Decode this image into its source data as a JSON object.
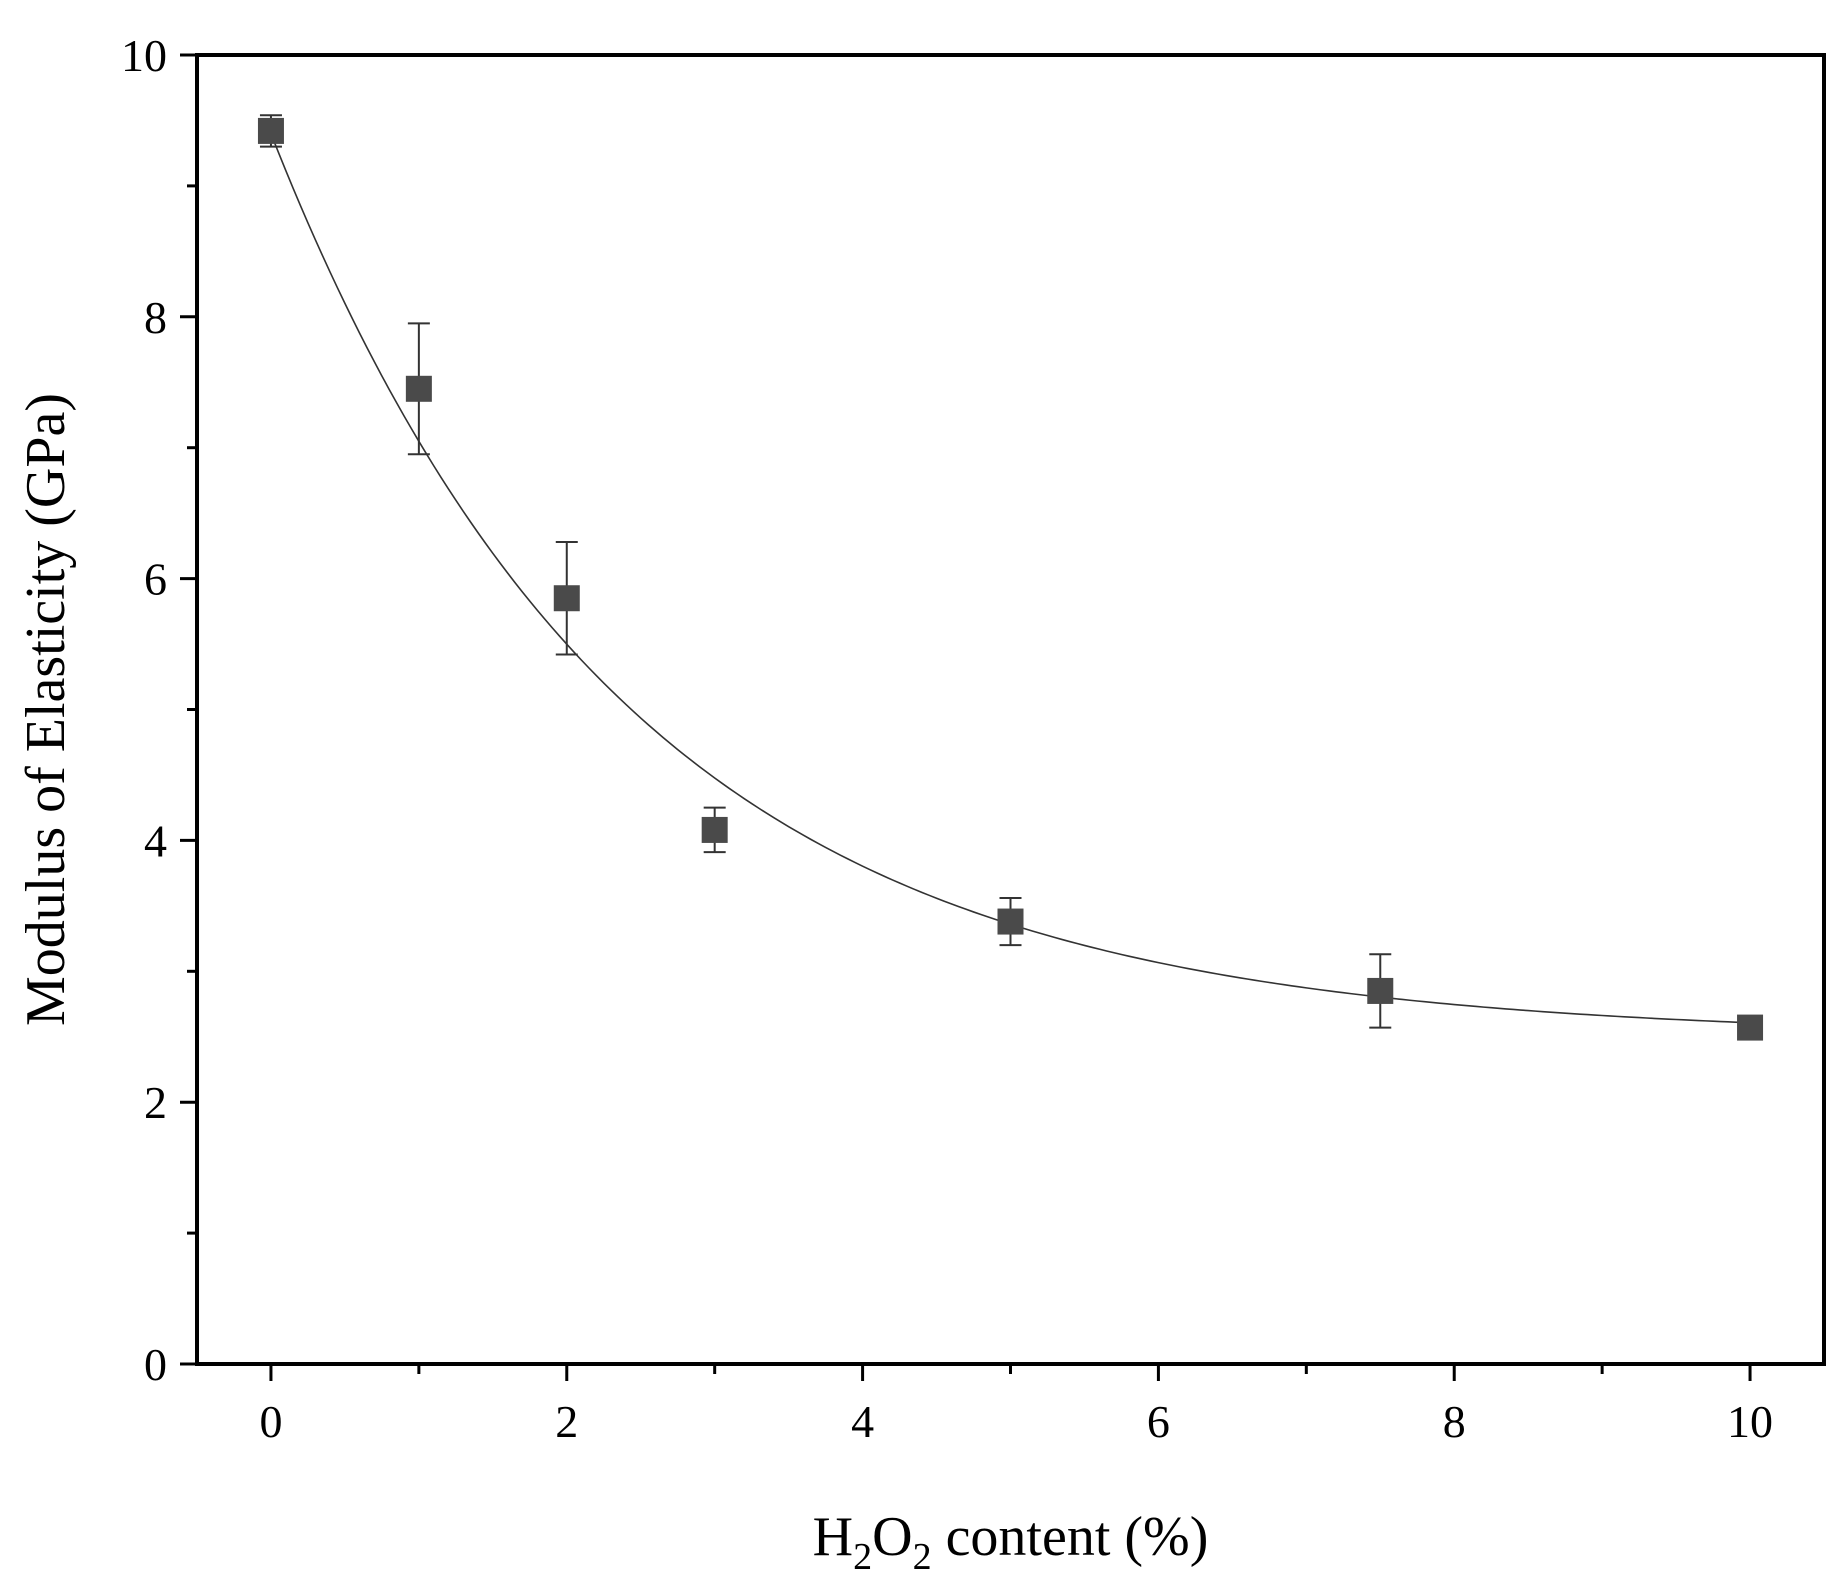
{
  "chart_data": {
    "type": "scatter",
    "xlabel": "H2O2 content (%)",
    "xlabel_parts": {
      "h": "H",
      "sub1": "2",
      "o": "O",
      "sub2": "2",
      "rest": " content (%)"
    },
    "ylabel": "Modulus of Elasticity (GPa)",
    "xlim": [
      -0.5,
      10.5
    ],
    "ylim": [
      0,
      10
    ],
    "x_ticks": [
      0,
      2,
      4,
      6,
      8,
      10
    ],
    "x_tick_labels": [
      "0",
      "2",
      "4",
      "6",
      "8",
      "10"
    ],
    "x_minor_ticks": [
      1,
      3,
      5,
      7,
      9
    ],
    "y_ticks": [
      0,
      2,
      4,
      6,
      8,
      10
    ],
    "y_tick_labels": [
      "0",
      "2",
      "4",
      "6",
      "8",
      "10"
    ],
    "y_minor_ticks": [
      1,
      3,
      5,
      7,
      9
    ],
    "grid": false,
    "legend": "none",
    "colors": {
      "marker": "#4a4a4a",
      "fit_line": "#333333",
      "axis": "#000000"
    },
    "series": [
      {
        "x": [
          0,
          1,
          2,
          3,
          5,
          7.5,
          10
        ],
        "y": [
          9.42,
          7.45,
          5.85,
          4.08,
          3.38,
          2.85,
          2.57
        ],
        "error_low": [
          0.12,
          0.5,
          0.43,
          0.17,
          0.18,
          0.28,
          0.0
        ],
        "error_high": [
          0.12,
          0.5,
          0.43,
          0.17,
          0.18,
          0.28,
          0.0
        ],
        "marker": "square"
      }
    ],
    "fit": {
      "type": "exponential decay",
      "equation_form": "y = y0 + A*exp(-x/t)",
      "y0": 2.5,
      "A": 6.9,
      "t": 2.4,
      "x_range": [
        0,
        10
      ]
    }
  }
}
